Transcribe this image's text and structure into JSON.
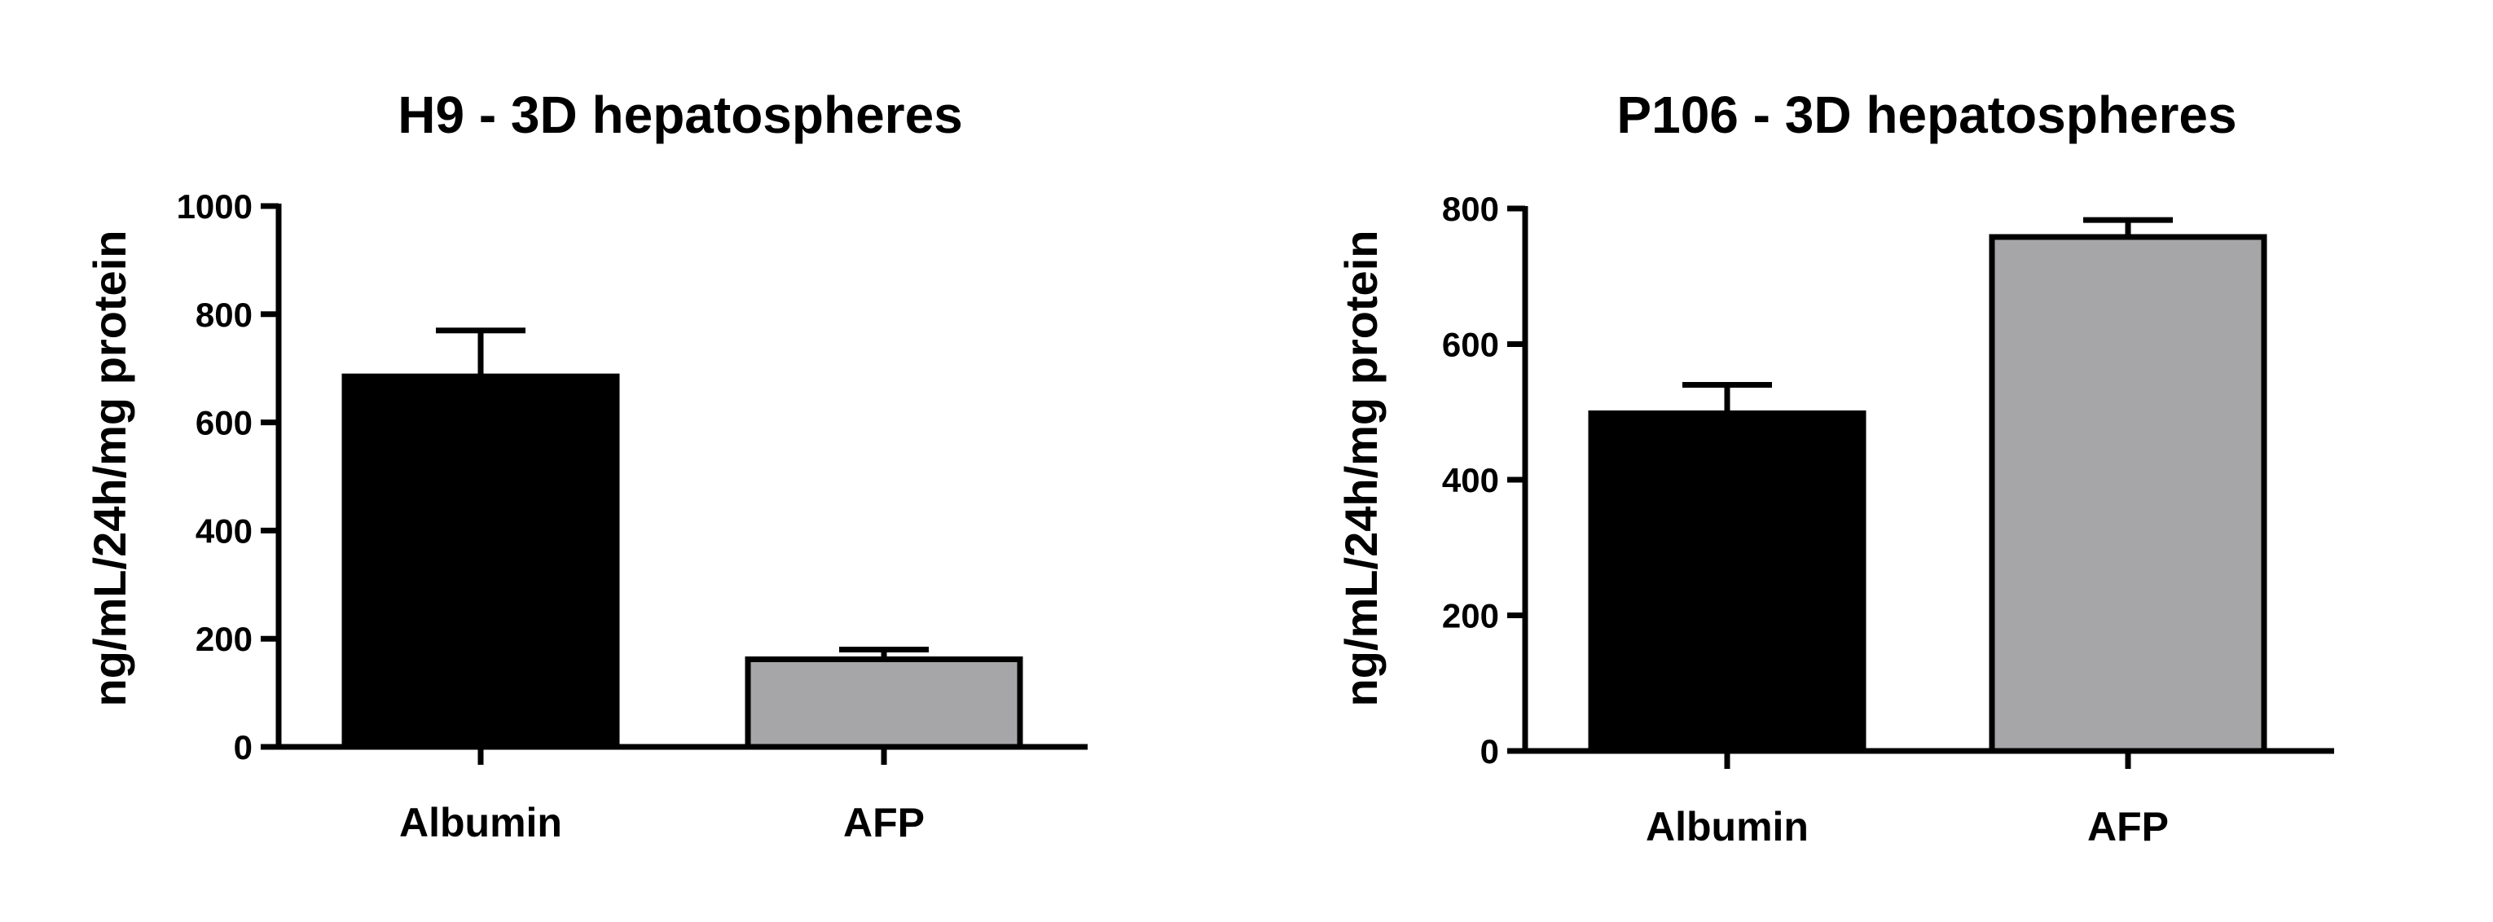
{
  "chart_data": [
    {
      "type": "bar",
      "title": "H9 - 3D hepatospheres",
      "ylabel": "ng/mL/24h/mg protein",
      "xlabel": "",
      "categories": [
        "Albumin",
        "AFP"
      ],
      "values": [
        685,
        162
      ],
      "errors": [
        85,
        18
      ],
      "ylim": [
        0,
        1000
      ],
      "yticks": [
        0,
        200,
        400,
        600,
        800,
        1000
      ],
      "bar_colors": [
        "#000000",
        "#a6a6a9"
      ],
      "grid": false
    },
    {
      "type": "bar",
      "title": "P106 - 3D hepatospheres",
      "ylabel": "ng/mL/24h/mg protein",
      "xlabel": "",
      "categories": [
        "Albumin",
        "AFP"
      ],
      "values": [
        498,
        758
      ],
      "errors": [
        42,
        25
      ],
      "ylim": [
        0,
        800
      ],
      "yticks": [
        0,
        200,
        400,
        600,
        800
      ],
      "bar_colors": [
        "#000000",
        "#a6a6a9"
      ],
      "grid": false
    }
  ]
}
